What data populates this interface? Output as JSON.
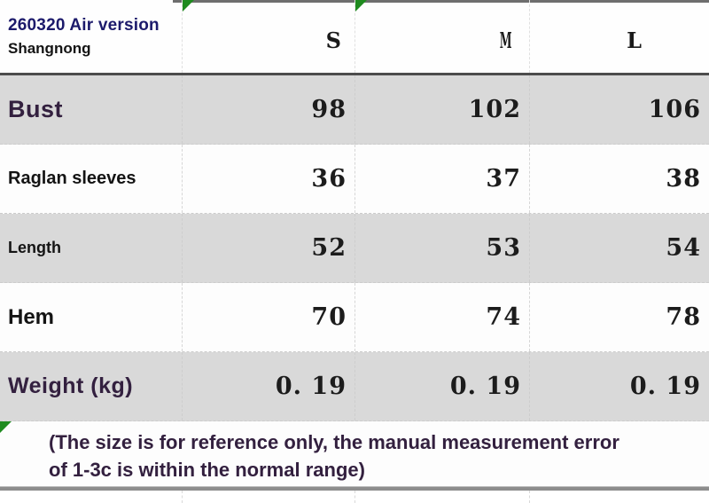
{
  "header": {
    "title": "260320 Air version",
    "subtitle": "Shangnong",
    "sizes": [
      "S",
      "M",
      "L"
    ]
  },
  "rows": [
    {
      "label": "Bust",
      "values": [
        "98",
        "102",
        "106"
      ]
    },
    {
      "label": "Raglan sleeves",
      "values": [
        "36",
        "37",
        "38"
      ]
    },
    {
      "label": "Length",
      "values": [
        "52",
        "53",
        "54"
      ]
    },
    {
      "label": "Hem",
      "values": [
        "70",
        "74",
        "78"
      ]
    },
    {
      "label": "Weight (kg)",
      "values": [
        "0. 19",
        "0. 19",
        "0. 19"
      ]
    }
  ],
  "footnote": {
    "line1": "(The size is for reference only, the manual measurement error",
    "line2": "of 1-3c is within the normal range)"
  },
  "colors": {
    "title_navy": "#1c1a6b",
    "label_purple": "#33203f",
    "shaded_row_bg": "#d9d9d9",
    "marker_green": "#1f8b1f",
    "heavy_border_gray": "#4c4c4c"
  },
  "chart_data": {
    "type": "table",
    "title": "260320 Air version",
    "subtitle": "Shangnong",
    "columns": [
      "",
      "S",
      "M",
      "L"
    ],
    "rows": [
      [
        "Bust",
        98,
        102,
        106
      ],
      [
        "Raglan sleeves",
        36,
        37,
        38
      ],
      [
        "Length",
        52,
        53,
        54
      ],
      [
        "Hem",
        70,
        74,
        78
      ],
      [
        "Weight (kg)",
        0.19,
        0.19,
        0.19
      ]
    ],
    "note": "(The size is for reference only, the manual measurement error of 1-3c is within the normal range)"
  }
}
